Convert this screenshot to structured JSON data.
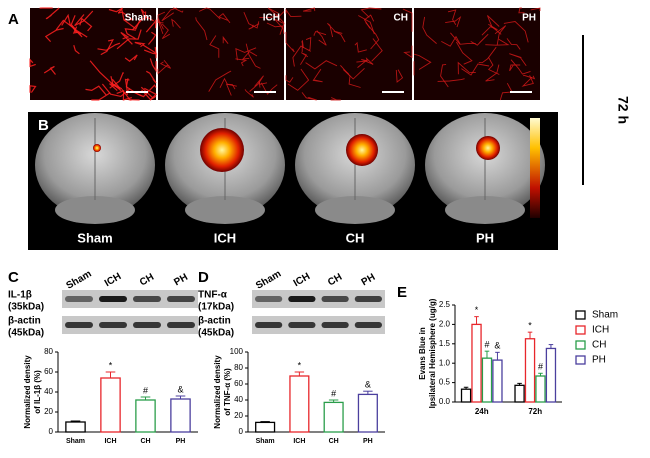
{
  "panel_a": {
    "letter": "A",
    "images": [
      "Sham",
      "ICH",
      "CH",
      "PH"
    ]
  },
  "time_label": "72 h",
  "panel_b": {
    "letter": "B",
    "images": [
      "Sham",
      "ICH",
      "CH",
      "PH"
    ]
  },
  "panel_c": {
    "letter": "C",
    "lanes": [
      "Sham",
      "ICH",
      "CH",
      "PH"
    ],
    "blots": [
      {
        "protein": "IL-1β",
        "size": "(35kDa)"
      },
      {
        "protein": "β-actin",
        "size": "(45kDa)"
      }
    ]
  },
  "panel_d": {
    "letter": "D",
    "lanes": [
      "Sham",
      "ICH",
      "CH",
      "PH"
    ],
    "blots": [
      {
        "protein": "TNF-α",
        "size": "(17kDa)"
      },
      {
        "protein": "β-actin",
        "size": "(45kDa)"
      }
    ]
  },
  "panel_e": {
    "letter": "E"
  },
  "chart_data": [
    {
      "type": "bar",
      "ylabel": [
        "Normalized density",
        "of IL-1β (%)"
      ],
      "categories": [
        "Sham",
        "ICH",
        "CH",
        "PH"
      ],
      "values": [
        10,
        54,
        32,
        33
      ],
      "errors": [
        1,
        6,
        3,
        3
      ],
      "annotations": [
        null,
        "*",
        "#",
        "&"
      ],
      "colors": [
        "#000000",
        "#e8262b",
        "#2a9d4a",
        "#4b3f9e"
      ],
      "ylim": [
        0,
        80
      ],
      "yticks": [
        0,
        20,
        40,
        60,
        80
      ]
    },
    {
      "type": "bar",
      "ylabel": [
        "Normalized density",
        "of TNF-α (%)"
      ],
      "categories": [
        "Sham",
        "ICH",
        "CH",
        "PH"
      ],
      "values": [
        12,
        70,
        37,
        47
      ],
      "errors": [
        1,
        5,
        3,
        4
      ],
      "annotations": [
        null,
        "*",
        "#",
        "&"
      ],
      "colors": [
        "#000000",
        "#e8262b",
        "#2a9d4a",
        "#4b3f9e"
      ],
      "ylim": [
        0,
        100
      ],
      "yticks": [
        0,
        20,
        40,
        60,
        80,
        100
      ]
    },
    {
      "type": "grouped_bar",
      "ylabel": [
        "Evans Blue in",
        "Ipsilateral Hemisphere (ug/g)"
      ],
      "categories": [
        "24h",
        "72h"
      ],
      "series": [
        {
          "name": "Sham",
          "color": "#000000",
          "values": [
            0.33,
            0.43
          ],
          "errors": [
            0.05,
            0.05
          ],
          "annotations": [
            null,
            null
          ]
        },
        {
          "name": "ICH",
          "color": "#e8262b",
          "values": [
            2.0,
            1.63
          ],
          "errors": [
            0.2,
            0.17
          ],
          "annotations": [
            "*",
            "*"
          ]
        },
        {
          "name": "CH",
          "color": "#2a9d4a",
          "values": [
            1.13,
            0.67
          ],
          "errors": [
            0.18,
            0.07
          ],
          "annotations": [
            "#",
            "#"
          ]
        },
        {
          "name": "PH",
          "color": "#4b3f9e",
          "values": [
            1.08,
            1.38
          ],
          "errors": [
            0.2,
            0.1
          ],
          "annotations": [
            "&",
            null
          ]
        }
      ],
      "ylim": [
        0,
        2.5
      ],
      "yticks": [
        {
          "value": 0,
          "label": "0.0"
        },
        0.5,
        {
          "value": 1,
          "label": "1.0"
        },
        1.5,
        {
          "value": 2,
          "label": "2.0"
        },
        2.5
      ],
      "legend": "right"
    }
  ]
}
